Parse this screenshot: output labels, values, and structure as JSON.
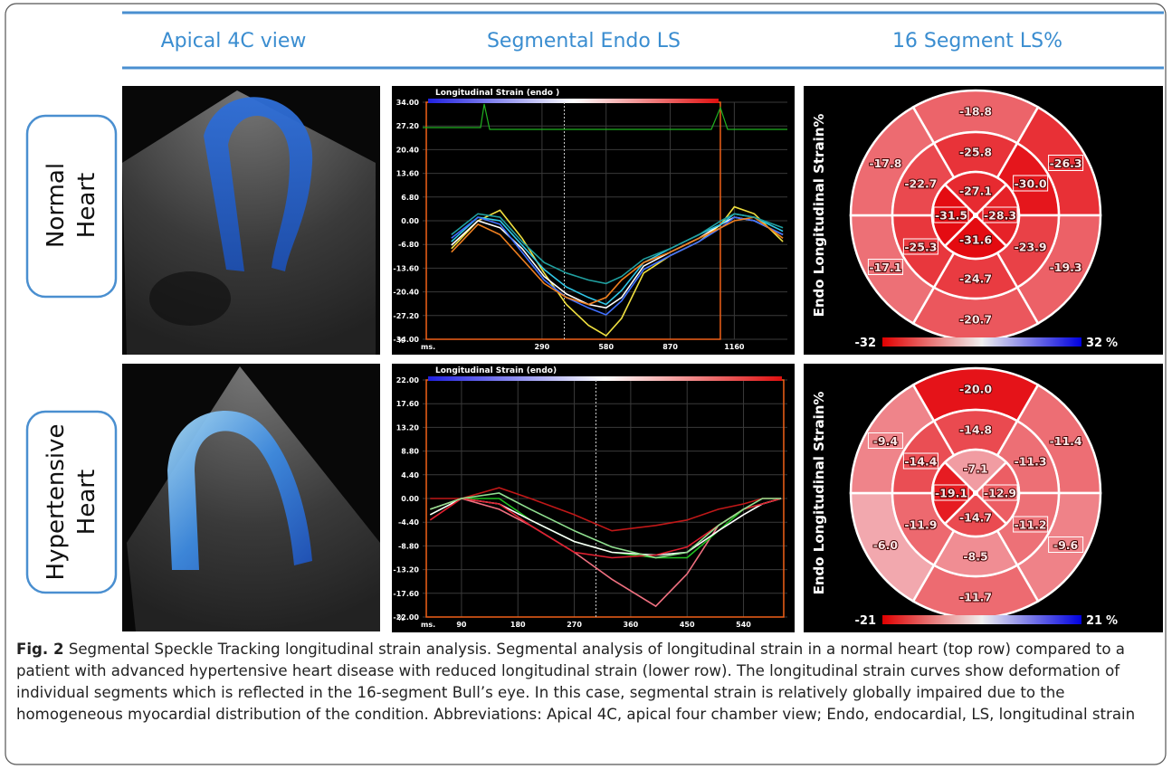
{
  "header": {
    "columns": [
      "Apical 4C view",
      "Segmental Endo LS",
      "16 Segment LS%"
    ]
  },
  "rows": [
    {
      "label_lines": [
        "Normal",
        "Heart"
      ],
      "strain_chart": {
        "type": "line",
        "title": "Longitudinal Strain (endo )",
        "x_unit": "ms.",
        "y_unit": "%",
        "xlim": [
          -250,
          1400
        ],
        "ylim": [
          -34,
          34
        ],
        "xticks": [
          290,
          580,
          870,
          1160
        ],
        "yticks": [
          {
            "value": 34,
            "label": "34.00"
          },
          {
            "value": 27.2,
            "label": "27.20"
          },
          {
            "value": 20.4,
            "label": "20.40"
          },
          {
            "value": 13.6,
            "label": "13.60"
          },
          {
            "value": 6.8,
            "label": "6.80"
          },
          {
            "value": 0,
            "label": "0.00"
          },
          {
            "value": -6.8,
            "label": "-6.80"
          },
          {
            "value": -13.6,
            "label": "-13.60"
          },
          {
            "value": -20.4,
            "label": "-20.40"
          },
          {
            "value": -27.2,
            "label": "-27.20"
          },
          {
            "value": -34,
            "label": "-34.00"
          }
        ],
        "x": [
          -120,
          0,
          100,
          200,
          300,
          400,
          500,
          580,
          650,
          750,
          870,
          1000,
          1100,
          1160,
          1250,
          1380
        ],
        "series": [
          {
            "color": "#f0e040",
            "values": [
              -8,
              0,
              3,
              -5,
              -15,
              -24,
              -30,
              -33,
              -28,
              -15,
              -10,
              -6,
              -1,
              4,
              2,
              -6
            ]
          },
          {
            "color": "#ffffff",
            "values": [
              -7,
              0,
              -2,
              -8,
              -16,
              -21,
              -24,
              -25,
              -22,
              -13,
              -9,
              -5,
              -1,
              1,
              0,
              -4
            ]
          },
          {
            "color": "#30c8e8",
            "values": [
              -6,
              1,
              0,
              -7,
              -14,
              -19,
              -22,
              -24,
              -20,
              -12,
              -8,
              -4,
              -1,
              2,
              1,
              -3
            ]
          },
          {
            "color": "#4070ff",
            "values": [
              -5,
              1,
              -1,
              -9,
              -17,
              -22,
              -25,
              -27,
              -23,
              -14,
              -10,
              -6,
              -2,
              1,
              0,
              -4
            ]
          },
          {
            "color": "#f08020",
            "values": [
              -9,
              -1,
              -4,
              -11,
              -18,
              -22,
              -24,
              -22,
              -17,
              -12,
              -9,
              -5,
              -2,
              0,
              1,
              -5
            ]
          },
          {
            "color": "#20a0a0",
            "values": [
              -4,
              2,
              1,
              -6,
              -12,
              -15,
              -17,
              -18,
              -16,
              -11,
              -8,
              -4,
              0,
              2,
              1,
              -2
            ]
          }
        ]
      },
      "bullseye": {
        "side_label": "Endo  Longitudinal Strain%",
        "values": [
          -18.8,
          -26.3,
          -19.3,
          -20.7,
          -17.1,
          -17.8,
          -25.8,
          -30.0,
          -23.9,
          -24.7,
          -25.3,
          -22.7,
          -27.1,
          -28.3,
          -31.6,
          -31.5
        ],
        "value_labels": [
          "-18.8",
          "-26.3",
          "-19.3",
          "-20.7",
          "-17.1",
          "-17.8",
          "-25.8",
          "-30.0",
          "-23.9",
          "-24.7",
          "-25.3",
          "-22.7",
          "-27.1",
          "-28.3",
          "-31.6",
          "-31.5"
        ],
        "boxed": [
          false,
          true,
          false,
          false,
          true,
          false,
          false,
          true,
          false,
          false,
          true,
          false,
          false,
          true,
          false,
          true
        ],
        "scale": {
          "min": -32,
          "max": 32,
          "unit": "%"
        }
      }
    },
    {
      "label_lines": [
        "Hypertensive",
        "Heart"
      ],
      "strain_chart": {
        "type": "line",
        "title": "Longitudinal Strain (endo)",
        "x_unit": "ms.",
        "y_unit": "%",
        "xlim": [
          28,
          610
        ],
        "ylim": [
          -22,
          22
        ],
        "xticks": [
          90,
          180,
          270,
          360,
          450,
          540
        ],
        "yticks": [
          {
            "value": 22,
            "label": "22.00"
          },
          {
            "value": 17.6,
            "label": "17.60"
          },
          {
            "value": 13.2,
            "label": "13.20"
          },
          {
            "value": 8.8,
            "label": "8.80"
          },
          {
            "value": 4.4,
            "label": "4.40"
          },
          {
            "value": 0,
            "label": "0.00"
          },
          {
            "value": -4.4,
            "label": "-4.40"
          },
          {
            "value": -8.8,
            "label": "-8.80"
          },
          {
            "value": -13.2,
            "label": "-13.20"
          },
          {
            "value": -17.6,
            "label": "-17.60"
          },
          {
            "value": -22,
            "label": "-22.00"
          }
        ],
        "x": [
          40,
          90,
          150,
          200,
          270,
          330,
          400,
          450,
          500,
          540,
          570,
          600
        ],
        "series": [
          {
            "color": "#c01818",
            "values": [
              0,
              0,
              2,
              0,
              -3,
              -6,
              -5,
              -4,
              -2,
              -1,
              0,
              0
            ]
          },
          {
            "color": "#f07080",
            "values": [
              -2,
              0,
              -2,
              -5,
              -10,
              -15,
              -20,
              -14,
              -5,
              -2,
              -1,
              0
            ]
          },
          {
            "color": "#20c020",
            "values": [
              -3,
              0,
              0,
              -4,
              -8,
              -10,
              -11,
              -11,
              -6,
              -2,
              -1,
              0
            ]
          },
          {
            "color": "#ffffff",
            "values": [
              -3,
              0,
              -1,
              -4,
              -8,
              -10,
              -10.5,
              -10,
              -6,
              -3,
              -1,
              0
            ]
          },
          {
            "color": "#e02030",
            "values": [
              -4,
              0,
              -1,
              -5,
              -10,
              -11,
              -10.5,
              -9,
              -5,
              -2,
              -1,
              0
            ]
          },
          {
            "color": "#90e090",
            "values": [
              -2,
              0,
              1,
              -2,
              -6,
              -9,
              -11,
              -10,
              -5,
              -2,
              0,
              0
            ]
          }
        ]
      },
      "bullseye": {
        "side_label": "Endo  Longitudinal Strain%",
        "values": [
          -20.0,
          -11.4,
          -9.6,
          -11.7,
          -6.0,
          -9.4,
          -14.8,
          -11.3,
          -11.2,
          -8.5,
          -11.9,
          -14.4,
          -7.1,
          -12.9,
          -14.7,
          -19.1
        ],
        "value_labels": [
          "-20.0",
          "-11.4",
          "-9.6",
          "-11.7",
          "-6.0",
          "-9.4",
          "-14.8",
          "-11.3",
          "-11.2",
          "-8.5",
          "-11.9",
          "-14.4",
          "-7.1",
          "-12.9",
          "-14.7",
          "-19.1"
        ],
        "boxed": [
          false,
          false,
          true,
          false,
          false,
          true,
          false,
          false,
          true,
          false,
          false,
          true,
          false,
          true,
          false,
          true
        ],
        "scale": {
          "min": -21,
          "max": 21,
          "unit": "%"
        }
      }
    }
  ],
  "caption": {
    "label": "Fig. 2",
    "text": "Segmental Speckle Tracking longitudinal strain analysis. Segmental analysis of longitudinal strain in a normal heart (top row) compared to a patient with advanced hypertensive heart disease with reduced longitudinal strain (lower row). The longitudinal strain curves show deformation of individual segments which is reflected in the 16-segment Bull’s eye. In this case, segmental strain is relatively globally impaired due to the homogeneous myocardial distribution of the condition. Abbreviations: Apical 4C, apical four chamber view; Endo, endocardial, LS, longitudinal strain"
  }
}
